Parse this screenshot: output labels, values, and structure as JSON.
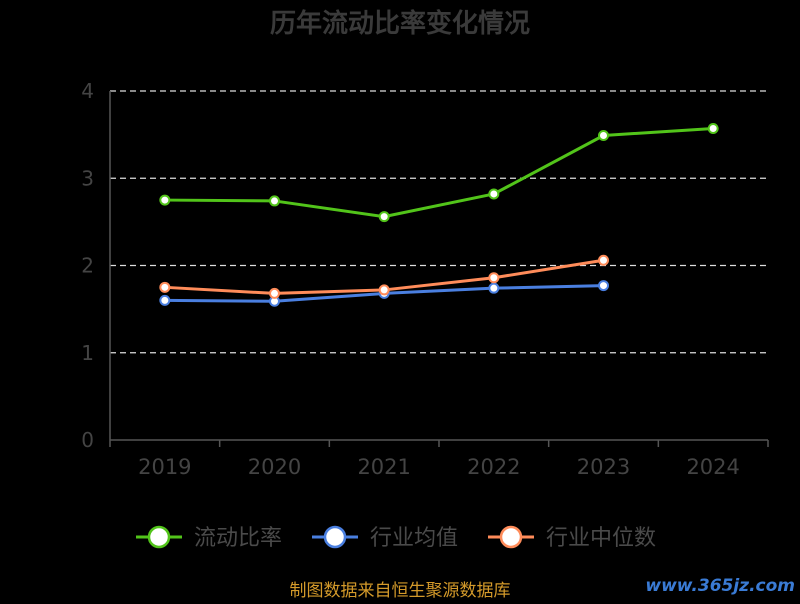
{
  "chart_data": {
    "type": "line",
    "title": "历年流动比率变化情况",
    "categories": [
      "2019",
      "2020",
      "2021",
      "2022",
      "2023",
      "2024"
    ],
    "yticks": [
      "0",
      "1",
      "2",
      "3",
      "4"
    ],
    "ylim": [
      0,
      4
    ],
    "grid": true,
    "legend_position": "bottom",
    "series": [
      {
        "name": "流动比率",
        "color": "#52c41a",
        "values": [
          2.75,
          2.74,
          2.56,
          2.82,
          3.49,
          3.57
        ]
      },
      {
        "name": "行业均值",
        "color": "#4a7fe0",
        "values": [
          1.6,
          1.59,
          1.68,
          1.74,
          1.77,
          null
        ]
      },
      {
        "name": "行业中位数",
        "color": "#ff8c5a",
        "values": [
          1.75,
          1.68,
          1.72,
          1.86,
          2.06,
          null
        ]
      }
    ]
  },
  "footer": {
    "source": "制图数据来自恒生聚源数据库",
    "watermark": "www.365jz.com"
  }
}
